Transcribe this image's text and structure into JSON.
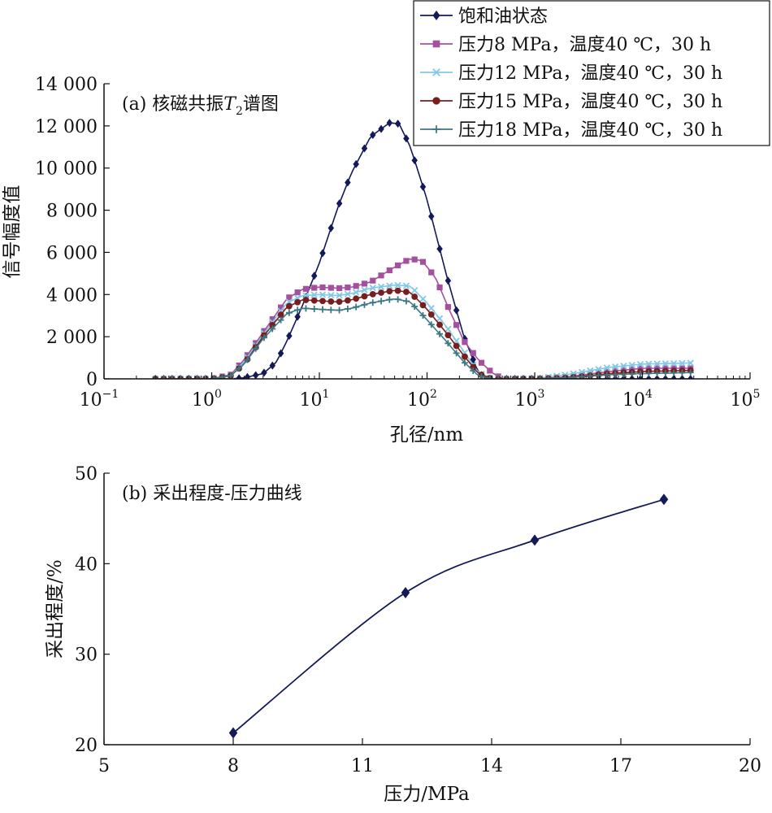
{
  "chart_data": [
    {
      "type": "line",
      "panel_label": "(a) 核磁共振",
      "panel_symbol": "T",
      "panel_subscript": "2",
      "panel_suffix": "谱图",
      "xlabel": "孔径/nm",
      "ylabel": "信号幅度值",
      "x_scale": "log",
      "xlim": [
        0.1,
        100000
      ],
      "ylim": [
        0,
        14000
      ],
      "x_ticks": [
        {
          "base": "10",
          "exp": "−1"
        },
        {
          "base": "10",
          "exp": "0"
        },
        {
          "base": "10",
          "exp": "1"
        },
        {
          "base": "10",
          "exp": "2"
        },
        {
          "base": "10",
          "exp": "3"
        },
        {
          "base": "10",
          "exp": "4"
        },
        {
          "base": "10",
          "exp": "5"
        }
      ],
      "y_ticks": [
        "0",
        "2 000",
        "4 000",
        "6 000",
        "8 000",
        "10 000",
        "12 000",
        "14 000"
      ],
      "legend_position": "top-right",
      "series": [
        {
          "name": "饱和油状态",
          "color": "#14195a",
          "marker": "diamond",
          "points": [
            [
              0.3,
              0
            ],
            [
              0.8,
              0
            ],
            [
              1.5,
              0
            ],
            [
              2,
              50
            ],
            [
              3,
              250
            ],
            [
              4,
              800
            ],
            [
              5,
              1800
            ],
            [
              7,
              3500
            ],
            [
              10,
              5500
            ],
            [
              15,
              8200
            ],
            [
              20,
              9800
            ],
            [
              30,
              11500
            ],
            [
              45,
              12150
            ],
            [
              55,
              12100
            ],
            [
              70,
              11000
            ],
            [
              100,
              8500
            ],
            [
              150,
              5000
            ],
            [
              220,
              2000
            ],
            [
              300,
              300
            ],
            [
              350,
              0
            ],
            [
              1000,
              0
            ],
            [
              3000,
              0
            ],
            [
              10000,
              0
            ],
            [
              28000,
              0
            ]
          ]
        },
        {
          "name": "压力8 MPa，温度40 ℃，30 h",
          "color": "#a4509e",
          "marker": "square",
          "points": [
            [
              0.3,
              0
            ],
            [
              1,
              0
            ],
            [
              1.5,
              200
            ],
            [
              2,
              900
            ],
            [
              3,
              2200
            ],
            [
              5,
              3800
            ],
            [
              7,
              4250
            ],
            [
              10,
              4350
            ],
            [
              15,
              4300
            ],
            [
              20,
              4350
            ],
            [
              30,
              4600
            ],
            [
              50,
              5300
            ],
            [
              70,
              5700
            ],
            [
              90,
              5600
            ],
            [
              120,
              4800
            ],
            [
              160,
              3300
            ],
            [
              220,
              1800
            ],
            [
              300,
              900
            ],
            [
              400,
              300
            ],
            [
              500,
              0
            ],
            [
              1000,
              0
            ],
            [
              2000,
              100
            ],
            [
              5000,
              350
            ],
            [
              10000,
              500
            ],
            [
              28000,
              500
            ]
          ]
        },
        {
          "name": "压力12 MPa，温度40 ℃，30 h",
          "color": "#82c8e6",
          "marker": "cross",
          "points": [
            [
              0.3,
              0
            ],
            [
              1,
              0
            ],
            [
              1.5,
              150
            ],
            [
              2,
              800
            ],
            [
              3,
              2100
            ],
            [
              5,
              3600
            ],
            [
              7,
              3950
            ],
            [
              10,
              4000
            ],
            [
              15,
              3950
            ],
            [
              20,
              4050
            ],
            [
              30,
              4300
            ],
            [
              50,
              4450
            ],
            [
              70,
              4400
            ],
            [
              100,
              3600
            ],
            [
              150,
              2500
            ],
            [
              220,
              1300
            ],
            [
              300,
              300
            ],
            [
              400,
              0
            ],
            [
              1000,
              0
            ],
            [
              2000,
              200
            ],
            [
              5000,
              550
            ],
            [
              10000,
              700
            ],
            [
              28000,
              750
            ]
          ]
        },
        {
          "name": "压力15 MPa，温度40 ℃，30 h",
          "color": "#781e1e",
          "marker": "circle",
          "points": [
            [
              0.3,
              0
            ],
            [
              1,
              0
            ],
            [
              1.5,
              150
            ],
            [
              2,
              700
            ],
            [
              3,
              2000
            ],
            [
              5,
              3400
            ],
            [
              7,
              3750
            ],
            [
              10,
              3700
            ],
            [
              15,
              3650
            ],
            [
              20,
              3750
            ],
            [
              30,
              4000
            ],
            [
              50,
              4200
            ],
            [
              70,
              4100
            ],
            [
              100,
              3300
            ],
            [
              150,
              2200
            ],
            [
              220,
              1100
            ],
            [
              300,
              250
            ],
            [
              400,
              0
            ],
            [
              1000,
              0
            ],
            [
              2000,
              50
            ],
            [
              5000,
              250
            ],
            [
              10000,
              350
            ],
            [
              28000,
              400
            ]
          ]
        },
        {
          "name": "压力18 MPa，温度40 ℃，30 h",
          "color": "#3c7882",
          "marker": "plus",
          "points": [
            [
              0.3,
              0
            ],
            [
              1,
              0
            ],
            [
              1.5,
              150
            ],
            [
              2,
              700
            ],
            [
              3,
              1900
            ],
            [
              5,
              3100
            ],
            [
              7,
              3350
            ],
            [
              10,
              3300
            ],
            [
              15,
              3250
            ],
            [
              20,
              3350
            ],
            [
              30,
              3600
            ],
            [
              50,
              3800
            ],
            [
              70,
              3650
            ],
            [
              100,
              2800
            ],
            [
              150,
              1800
            ],
            [
              220,
              800
            ],
            [
              300,
              150
            ],
            [
              400,
              0
            ],
            [
              1000,
              0
            ],
            [
              2000,
              50
            ],
            [
              5000,
              200
            ],
            [
              10000,
              250
            ],
            [
              28000,
              300
            ]
          ]
        }
      ]
    },
    {
      "type": "line",
      "title": "(b) 采出程度-压力曲线",
      "xlabel": "压力/MPa",
      "ylabel": "采出程度/%",
      "xlim": [
        5,
        20
      ],
      "ylim": [
        20,
        50
      ],
      "x_ticks": [
        "5",
        "8",
        "11",
        "14",
        "17",
        "20"
      ],
      "y_ticks": [
        "20",
        "30",
        "40",
        "50"
      ],
      "series": [
        {
          "color": "#14195a",
          "marker": "diamond",
          "x": [
            8,
            12,
            15,
            18
          ],
          "y": [
            21.3,
            36.8,
            42.6,
            47.1
          ]
        }
      ]
    }
  ]
}
